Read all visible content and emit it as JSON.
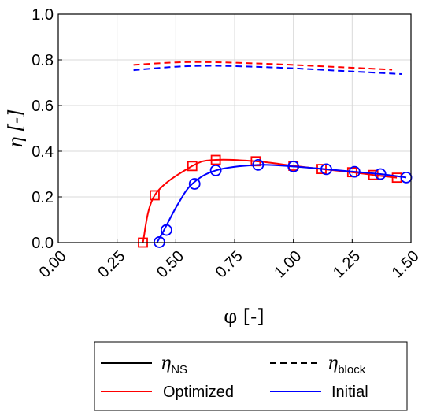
{
  "chart_data": {
    "type": "line",
    "xlabel": "φ [-]",
    "ylabel": "η [-]",
    "xlim": [
      0,
      1.5
    ],
    "ylim": [
      0,
      1.0
    ],
    "x_ticks": [
      "0.00",
      "0.25",
      "0.50",
      "0.75",
      "1.00",
      "1.25",
      "1.50"
    ],
    "y_ticks": [
      "0.0",
      "0.2",
      "0.4",
      "0.6",
      "0.8",
      "1.0"
    ],
    "grid": true,
    "legend_position": "below",
    "legend": {
      "ns_symbol": "η",
      "ns_subscript": "NS",
      "block_symbol": "η",
      "block_subscript": "block",
      "optimized_label": "Optimized",
      "initial_label": "Initial"
    },
    "colors": {
      "optimized": "#ff0000",
      "initial": "#0000ff"
    },
    "series": [
      {
        "name": "Optimized",
        "quantity": "η_NS",
        "style": "solid",
        "marker": "square",
        "color": "#ff0000",
        "points": [
          [
            0.36,
            0.0
          ],
          [
            0.41,
            0.207
          ],
          [
            0.57,
            0.335
          ],
          [
            0.67,
            0.362
          ],
          [
            0.84,
            0.356
          ],
          [
            1.0,
            0.336
          ],
          [
            1.12,
            0.322
          ],
          [
            1.25,
            0.308
          ],
          [
            1.34,
            0.296
          ],
          [
            1.44,
            0.284
          ]
        ],
        "markers": [
          [
            0.36,
            0.0
          ],
          [
            0.41,
            0.207
          ],
          [
            0.57,
            0.335
          ],
          [
            0.67,
            0.362
          ],
          [
            0.84,
            0.356
          ],
          [
            1.0,
            0.336
          ],
          [
            1.12,
            0.322
          ],
          [
            1.25,
            0.308
          ],
          [
            1.34,
            0.296
          ],
          [
            1.44,
            0.284
          ]
        ]
      },
      {
        "name": "Initial",
        "quantity": "η_NS",
        "style": "solid",
        "marker": "circle",
        "color": "#0000ff",
        "points": [
          [
            0.42,
            0.0
          ],
          [
            0.45,
            0.055
          ],
          [
            0.51,
            0.17
          ],
          [
            0.57,
            0.257
          ],
          [
            0.67,
            0.316
          ],
          [
            0.85,
            0.34
          ],
          [
            1.0,
            0.333
          ],
          [
            1.14,
            0.321
          ],
          [
            1.26,
            0.31
          ],
          [
            1.37,
            0.3
          ],
          [
            1.48,
            0.285
          ]
        ],
        "markers": [
          [
            0.43,
            0.002
          ],
          [
            0.46,
            0.055
          ],
          [
            0.58,
            0.257
          ],
          [
            0.67,
            0.316
          ],
          [
            0.85,
            0.34
          ],
          [
            1.0,
            0.333
          ],
          [
            1.14,
            0.321
          ],
          [
            1.26,
            0.31
          ],
          [
            1.37,
            0.3
          ],
          [
            1.48,
            0.285
          ]
        ]
      },
      {
        "name": "Optimized",
        "quantity": "η_block",
        "style": "dashed",
        "color": "#ff0000",
        "points": [
          [
            0.32,
            0.778
          ],
          [
            0.5,
            0.789
          ],
          [
            0.65,
            0.79
          ],
          [
            0.8,
            0.786
          ],
          [
            1.0,
            0.778
          ],
          [
            1.2,
            0.768
          ],
          [
            1.42,
            0.757
          ]
        ]
      },
      {
        "name": "Initial",
        "quantity": "η_block",
        "style": "dashed",
        "color": "#0000ff",
        "points": [
          [
            0.32,
            0.755
          ],
          [
            0.5,
            0.77
          ],
          [
            0.65,
            0.774
          ],
          [
            0.8,
            0.771
          ],
          [
            1.0,
            0.763
          ],
          [
            1.2,
            0.752
          ],
          [
            1.46,
            0.738
          ]
        ]
      }
    ]
  }
}
